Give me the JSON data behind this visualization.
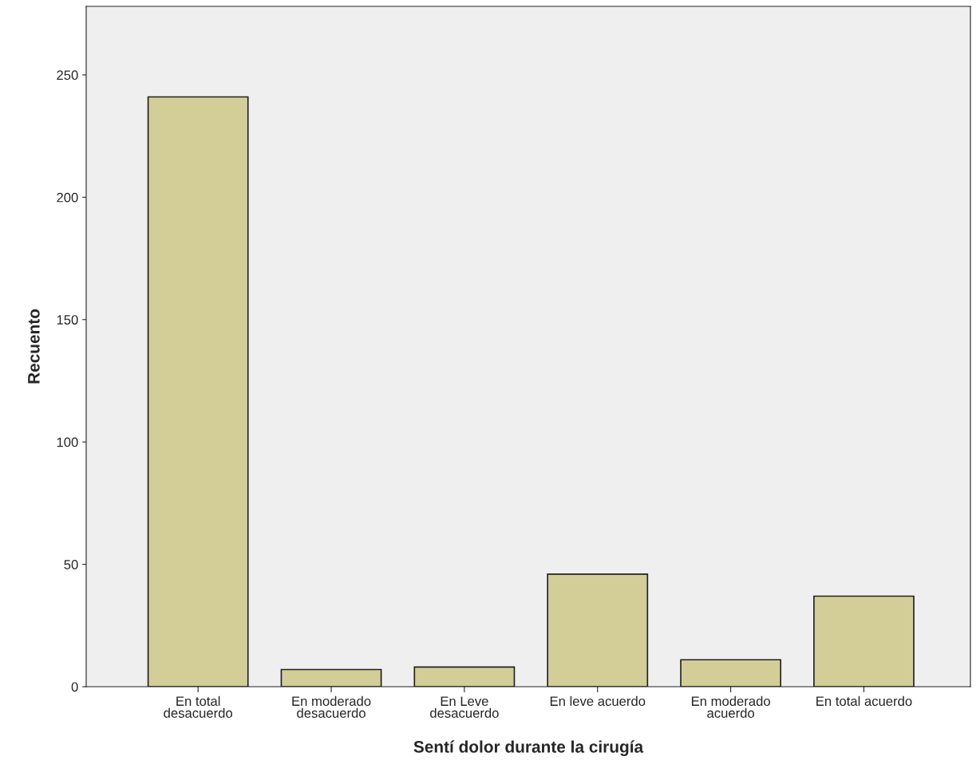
{
  "chart_data": {
    "type": "bar",
    "xlabel": "Sentí dolor durante la cirugía",
    "ylabel": "Recuento",
    "categories": [
      "En total\ndesacuerdo",
      "En moderado\ndesacuerdo",
      "En Leve\ndesacuerdo",
      "En leve acuerdo",
      "En moderado\nacuerdo",
      "En total acuerdo"
    ],
    "values": [
      241,
      7,
      8,
      46,
      11,
      37
    ],
    "color": "#d3ce97",
    "ylim": [
      0,
      278
    ],
    "yticks": [
      0,
      50,
      100,
      150,
      200,
      250
    ],
    "grid": false,
    "legend": false
  }
}
